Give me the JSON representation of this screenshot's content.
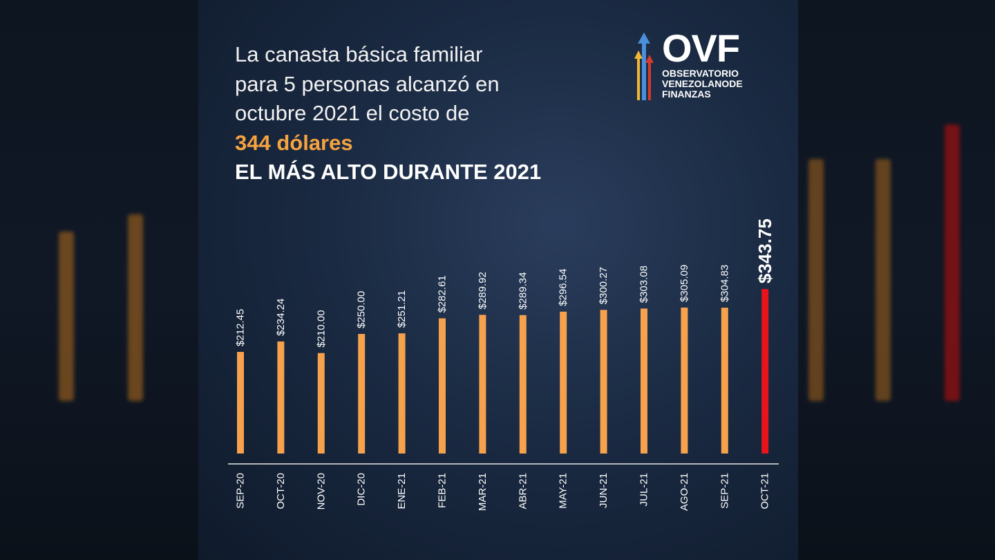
{
  "headline": {
    "lines": [
      "La canasta básica familiar",
      "para 5 personas  alcanzó en",
      "octubre 2021 el costo de"
    ],
    "highlight": "344 dólares",
    "emphasis": "EL MÁS ALTO DURANTE 2021"
  },
  "logo": {
    "acronym": "OVF",
    "line1": "OBSERVATORIO",
    "line2": "VENEZOLANODE",
    "line3": "FINANZAS"
  },
  "colors": {
    "bar": "#f6a14c",
    "highlight_bar": "#e8141b",
    "label": "#ffffff",
    "accent_text": "#f6a340"
  },
  "chart_data": {
    "type": "bar",
    "title": "La canasta básica familiar para 5 personas",
    "categories": [
      "SEP-20",
      "OCT-20",
      "NOV-20",
      "DIC-20",
      "ENE-21",
      "FEB-21",
      "MAR-21",
      "ABR-21",
      "MAY-21",
      "JUN-21",
      "JUL-21",
      "AGO-21",
      "SEP-21",
      "OCT-21"
    ],
    "values": [
      212.45,
      234.24,
      210.0,
      250.0,
      251.21,
      282.61,
      289.92,
      289.34,
      296.54,
      300.27,
      303.08,
      305.09,
      304.83,
      343.75
    ],
    "labels": [
      "$212.45",
      "$234.24",
      "$210.00",
      "$250.00",
      "$251.21",
      "$282.61",
      "$289.92",
      "$289.34",
      "$296.54",
      "$300.27",
      "$303.08",
      "$305.09",
      "$304.83",
      "$343.75"
    ],
    "highlight_index": 13,
    "xlabel": "",
    "ylabel": "USD",
    "ylim": [
      0,
      350
    ],
    "grid": false
  }
}
